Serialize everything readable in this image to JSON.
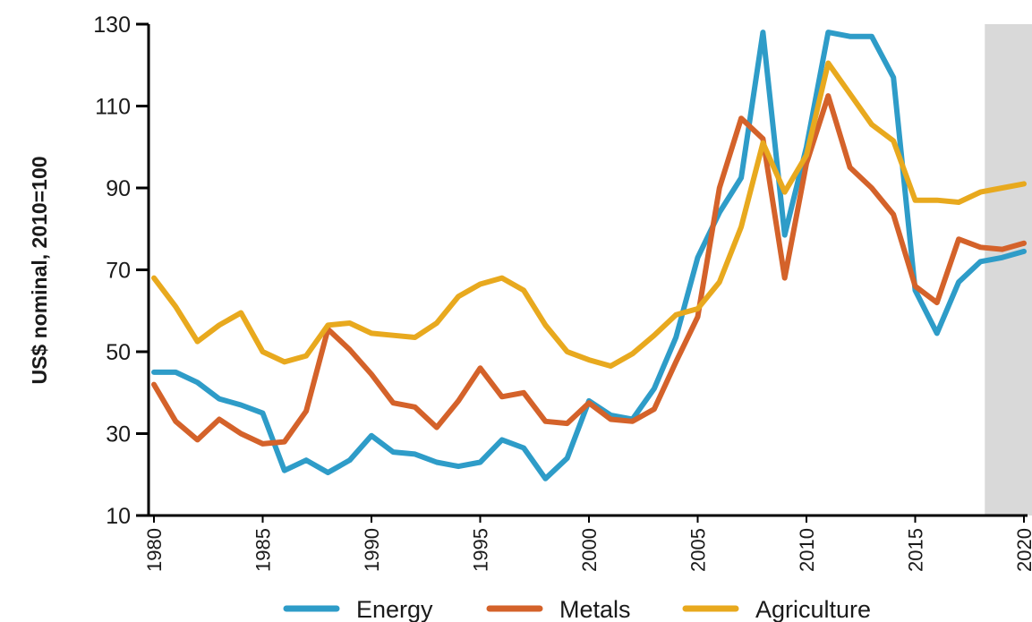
{
  "chart_data": {
    "type": "line",
    "title": "",
    "xlabel": "",
    "ylabel": "US$ nominal, 2010=100",
    "x": [
      1980,
      1981,
      1982,
      1983,
      1984,
      1985,
      1986,
      1987,
      1988,
      1989,
      1990,
      1991,
      1992,
      1993,
      1994,
      1995,
      1996,
      1997,
      1998,
      1999,
      2000,
      2001,
      2002,
      2003,
      2004,
      2005,
      2006,
      2007,
      2008,
      2009,
      2010,
      2011,
      2012,
      2013,
      2014,
      2015,
      2016,
      2017,
      2018,
      2019,
      2020
    ],
    "xlim": [
      1980,
      2020
    ],
    "ylim": [
      10,
      130
    ],
    "yticks": [
      10,
      30,
      50,
      70,
      90,
      110,
      130
    ],
    "ytick_labels": [
      "10",
      "30",
      "50",
      "70",
      "90",
      "110",
      "130"
    ],
    "xticks": [
      1980,
      1985,
      1990,
      1995,
      2000,
      2005,
      2010,
      2015,
      2020
    ],
    "xtick_labels": [
      "1980",
      "1985",
      "1990",
      "1995",
      "2000",
      "2005",
      "2010",
      "2015",
      "2020"
    ],
    "forecast_shade": [
      2018,
      2020
    ],
    "grid": false,
    "legend_position": "bottom",
    "series": [
      {
        "name": "Energy",
        "color": "#2e9cc8",
        "values": [
          45,
          45,
          42.5,
          38.5,
          37,
          35,
          21,
          23.5,
          20.5,
          23.5,
          29.5,
          25.5,
          25,
          23,
          22,
          23,
          28.5,
          26.5,
          19,
          24,
          38,
          34.5,
          33.5,
          41,
          53.5,
          73,
          84,
          92.5,
          128,
          78.5,
          100,
          128,
          127,
          127,
          117,
          65,
          54.5,
          67,
          72,
          73,
          74.5
        ]
      },
      {
        "name": "Metals",
        "color": "#d4622a",
        "values": [
          42,
          33,
          28.5,
          33.5,
          30,
          27.5,
          28,
          35.5,
          55.5,
          50.5,
          44.5,
          37.5,
          36.5,
          31.5,
          38,
          46,
          39,
          40,
          33,
          32.5,
          37.5,
          33.5,
          33,
          36,
          47.5,
          58.5,
          90,
          107,
          102,
          68,
          96,
          112.5,
          95,
          90,
          83.5,
          66,
          62,
          77.5,
          75.5,
          75,
          76.5
        ]
      },
      {
        "name": "Agriculture",
        "color": "#e8a91e",
        "values": [
          68,
          61,
          52.5,
          56.5,
          59.5,
          50,
          47.5,
          49,
          56.5,
          57,
          54.5,
          54,
          53.5,
          57,
          63.5,
          66.5,
          68,
          65,
          56.5,
          50,
          48,
          46.5,
          49.5,
          54,
          59,
          60.5,
          67,
          80.5,
          101,
          89,
          98,
          120.5,
          113,
          105.5,
          101.5,
          87,
          87,
          86.5,
          89,
          90,
          91
        ]
      }
    ]
  }
}
